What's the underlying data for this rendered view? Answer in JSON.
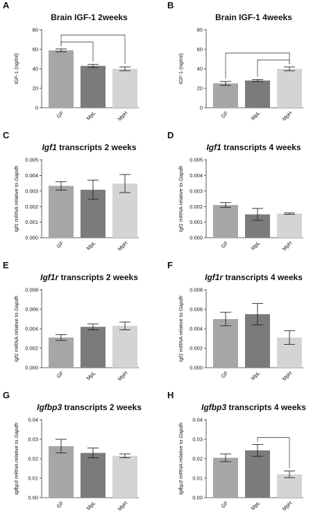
{
  "chart_data": [
    {
      "panel": "A",
      "type": "bar",
      "title": "Brain IGF-1 2weeks",
      "ylabel": "IGF-1 (ng/ml)",
      "ylim": [
        0,
        80
      ],
      "yticks": [
        "0",
        "20",
        "40",
        "60",
        "80"
      ],
      "categories": [
        "GF",
        "MpL",
        "MpH"
      ],
      "values": [
        59,
        43,
        40
      ],
      "errors": [
        1.5,
        1.5,
        2
      ],
      "colors": [
        "#a6a6a6",
        "#7b7b7b",
        "#d4d4d4"
      ],
      "brackets": [
        [
          0,
          1
        ],
        [
          0,
          2
        ]
      ]
    },
    {
      "panel": "B",
      "type": "bar",
      "title": "Brain IGF-1 4weeks",
      "ylabel": "IGF-1 (ng/ml)",
      "ylim": [
        0,
        80
      ],
      "yticks": [
        "0",
        "20",
        "40",
        "60",
        "80"
      ],
      "categories": [
        "GF",
        "MpL",
        "MpH"
      ],
      "values": [
        25,
        28,
        40
      ],
      "errors": [
        2,
        1,
        2
      ],
      "colors": [
        "#a6a6a6",
        "#7b7b7b",
        "#d4d4d4"
      ],
      "brackets": [
        [
          0,
          2
        ],
        [
          1,
          2
        ]
      ]
    },
    {
      "panel": "C",
      "type": "bar",
      "title_gene": "Igf1",
      "title_rest": "transcripts 2 weeks",
      "ylabel_gene": "Igf1",
      "ylabel_rest": "mRNA relative to Gapdh",
      "ylim": [
        0,
        0.005
      ],
      "yticks": [
        "0.000",
        "0.001",
        "0.002",
        "0.003",
        "0.004",
        "0.005"
      ],
      "categories": [
        "GF",
        "MpL",
        "MpH"
      ],
      "values": [
        0.00333,
        0.00308,
        0.00348
      ],
      "errors": [
        0.00027,
        0.00062,
        0.00058
      ],
      "colors": [
        "#a6a6a6",
        "#7b7b7b",
        "#d4d4d4"
      ],
      "brackets": []
    },
    {
      "panel": "D",
      "type": "bar",
      "title_gene": "Igf1",
      "title_rest": "transcripts 4 weeks",
      "ylabel_gene": "Igf1",
      "ylabel_rest": "mRNA relative to Gapdh",
      "ylim": [
        0,
        0.005
      ],
      "yticks": [
        "0.000",
        "0.001",
        "0.002",
        "0.003",
        "0.004",
        "0.005"
      ],
      "categories": [
        "GF",
        "MpL",
        "MpH"
      ],
      "values": [
        0.0021,
        0.0015,
        0.00155
      ],
      "errors": [
        0.00015,
        0.00038,
        5e-05
      ],
      "colors": [
        "#a6a6a6",
        "#7b7b7b",
        "#d4d4d4"
      ],
      "brackets": []
    },
    {
      "panel": "E",
      "type": "bar",
      "title_gene": "Igf1r",
      "title_rest": "transcripts 2 weeks",
      "ylabel_gene": "Igf1",
      "ylabel_rest": "mRNA relative to Gapdh",
      "ylim": [
        0,
        0.008
      ],
      "yticks": [
        "0.000",
        "0.002",
        "0.004",
        "0.006",
        "0.008"
      ],
      "categories": [
        "GF",
        "MpL",
        "MpH"
      ],
      "values": [
        0.0031,
        0.0042,
        0.0043
      ],
      "errors": [
        0.0003,
        0.0003,
        0.0004
      ],
      "colors": [
        "#a6a6a6",
        "#7b7b7b",
        "#d4d4d4"
      ],
      "brackets": []
    },
    {
      "panel": "F",
      "type": "bar",
      "title_gene": "Igf1r",
      "title_rest": "transcripts 4 weeks",
      "ylabel_gene": "Igf1",
      "ylabel_rest": "mRNA relative to Gapdh",
      "ylim": [
        0,
        0.008
      ],
      "yticks": [
        "0.000",
        "0.002",
        "0.004",
        "0.006",
        "0.008"
      ],
      "categories": [
        "GF",
        "MpL",
        "MpH"
      ],
      "values": [
        0.005,
        0.0055,
        0.0031
      ],
      "errors": [
        0.0007,
        0.0011,
        0.0007
      ],
      "colors": [
        "#a6a6a6",
        "#7b7b7b",
        "#d4d4d4"
      ],
      "brackets": []
    },
    {
      "panel": "G",
      "type": "bar",
      "title_gene": "Igfbp3",
      "title_rest": "transcripts 2 weeks",
      "ylabel_gene": "Igfbp3",
      "ylabel_rest": "mRNA relative to Gapdh",
      "ylim": [
        0,
        0.04
      ],
      "yticks": [
        "0.00",
        "0.01",
        "0.02",
        "0.03",
        "0.04"
      ],
      "categories": [
        "GF",
        "MpL",
        "MpH"
      ],
      "values": [
        0.0265,
        0.023,
        0.0215
      ],
      "errors": [
        0.0035,
        0.0025,
        0.001
      ],
      "colors": [
        "#a6a6a6",
        "#7b7b7b",
        "#d4d4d4"
      ],
      "brackets": []
    },
    {
      "panel": "H",
      "type": "bar",
      "title_gene": "Igfbp3",
      "title_rest": "transcripts 4 weeks",
      "ylabel_gene": "Igfbp3",
      "ylabel_rest": "mRNA relative to Gapdh",
      "ylim": [
        0,
        0.04
      ],
      "yticks": [
        "0.00",
        "0.01",
        "0.02",
        "0.03",
        "0.04"
      ],
      "categories": [
        "GF",
        "MpL",
        "MpH"
      ],
      "values": [
        0.0205,
        0.0243,
        0.012
      ],
      "errors": [
        0.002,
        0.003,
        0.0017
      ],
      "colors": [
        "#a6a6a6",
        "#7b7b7b",
        "#d4d4d4"
      ],
      "brackets": [
        [
          1,
          2
        ]
      ]
    }
  ]
}
